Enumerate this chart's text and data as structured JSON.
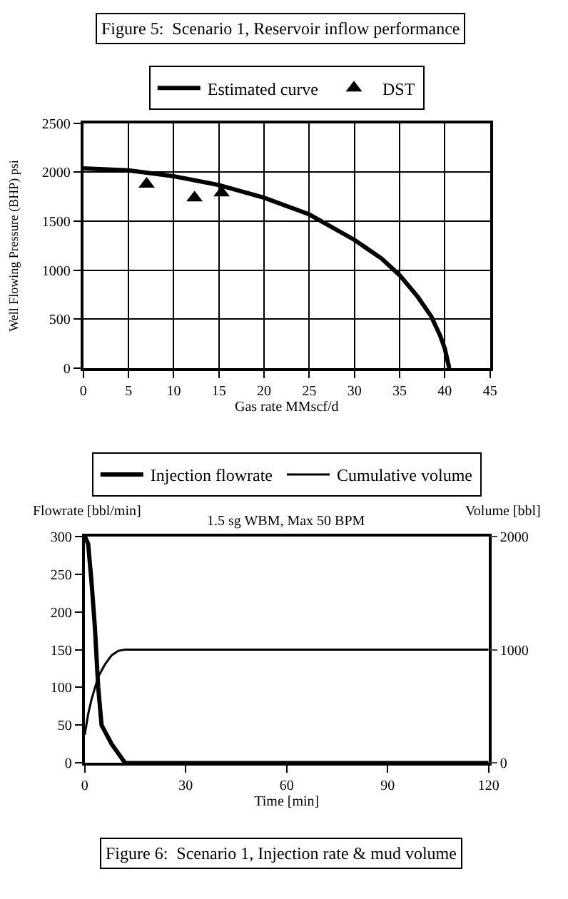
{
  "chart_data": [
    {
      "type": "line",
      "title": "Figure 5:  Scenario 1, Reservoir inflow performance",
      "xlabel": "Gas rate MMscf/d",
      "ylabel": "Well Flowing Pressure (BHP) psi",
      "xlim": [
        0,
        45
      ],
      "xticks": [
        0,
        5,
        10,
        15,
        20,
        25,
        30,
        35,
        40,
        45
      ],
      "ylim": [
        0,
        2500
      ],
      "yticks": [
        0,
        500,
        1000,
        1500,
        2000,
        2500
      ],
      "grid": true,
      "legend": "top",
      "series": [
        {
          "name": "Estimated curve",
          "marker": "none",
          "color": "#000000",
          "x": [
            0,
            5,
            10,
            15,
            20,
            25,
            30,
            33,
            35,
            37,
            38.5,
            39.5,
            40,
            40.5
          ],
          "values": [
            2040,
            2020,
            1960,
            1870,
            1740,
            1570,
            1310,
            1120,
            950,
            730,
            530,
            330,
            200,
            0
          ]
        },
        {
          "name": "DST",
          "type": "scatter",
          "marker": "triangle",
          "color": "#000000",
          "x": [
            7,
            12.3,
            15.3
          ],
          "values": [
            1880,
            1740,
            1790
          ]
        }
      ]
    },
    {
      "type": "line",
      "title": "Figure 6:  Scenario 1, Injection rate & mud volume",
      "xlabel": "Time [min]",
      "ylabel": "Flowrate [bbl/min]",
      "y2label": "Volume [bbl]",
      "annotations": [
        "1.5 sg WBM, Max 50 BPM"
      ],
      "xlim": [
        0,
        120
      ],
      "xticks": [
        0,
        30,
        60,
        90,
        120
      ],
      "ylim": [
        0,
        300
      ],
      "yticks": [
        0,
        50,
        100,
        150,
        200,
        250,
        300
      ],
      "y2lim": [
        0,
        2000
      ],
      "y2ticks": [
        0,
        1000,
        2000
      ],
      "grid": false,
      "legend": "top",
      "series": [
        {
          "name": "Injection flowrate",
          "color": "#000000",
          "x": [
            0,
            1,
            2,
            3,
            4,
            5,
            8,
            12,
            120
          ],
          "values": [
            300,
            290,
            240,
            180,
            100,
            50,
            25,
            0,
            0
          ]
        },
        {
          "name": "Cumulative volume",
          "axis": "y2",
          "color": "#000000",
          "x": [
            0,
            1,
            2,
            4,
            6,
            8,
            10,
            12,
            120
          ],
          "values": [
            250,
            430,
            560,
            760,
            870,
            950,
            990,
            1000,
            1000
          ]
        }
      ]
    }
  ]
}
